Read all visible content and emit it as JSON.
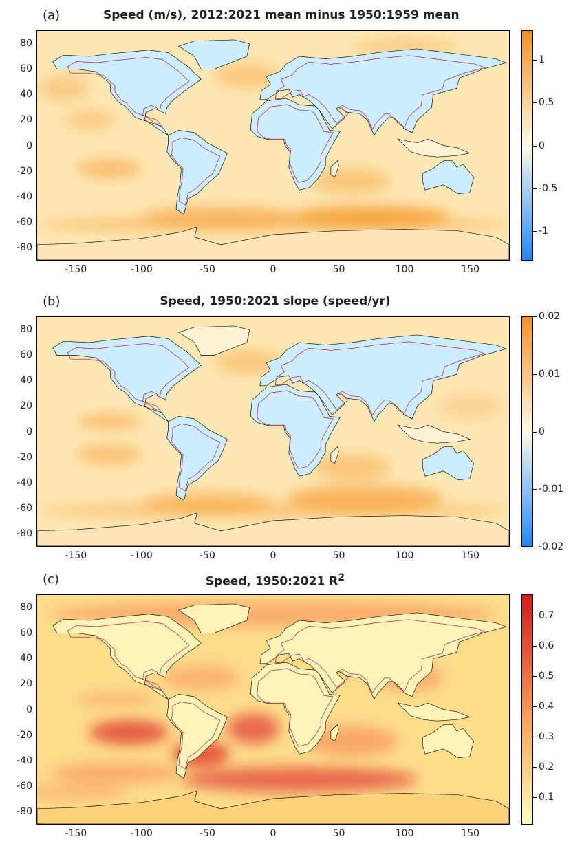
{
  "panels": [
    {
      "label": "(a)",
      "title": "Speed (m/s), 2012:2021 mean minus 1950:1959 mean",
      "colormap": "diverging",
      "colorbar_ticks": [
        "1",
        "0.5",
        "0",
        "-0.5",
        "-1"
      ],
      "colorbar_range": [
        -1.35,
        1.35
      ],
      "colorbar_values": [
        1,
        0.5,
        0,
        -0.5,
        -1
      ],
      "colors": {
        "high": "#f5901e",
        "mid": "#fffbe8",
        "low": "#1e88ff"
      }
    },
    {
      "label": "(b)",
      "title": "Speed, 1950:2021 slope (speed/yr)",
      "colormap": "diverging",
      "colorbar_ticks": [
        "0.02",
        "0.01",
        "0",
        "-0.01",
        "-0.02"
      ],
      "colorbar_range": [
        -0.02,
        0.02
      ],
      "colorbar_values": [
        0.02,
        0.01,
        0,
        -0.01,
        -0.02
      ],
      "colors": {
        "high": "#f5901e",
        "mid": "#fffbe8",
        "low": "#1e88ff"
      }
    },
    {
      "label": "(c)",
      "title": "Speed, 1950:2021 R",
      "title_sup": "2",
      "colormap": "sequential",
      "colorbar_ticks": [
        "0.7",
        "0.6",
        "0.5",
        "0.4",
        "0.3",
        "0.2",
        "0.1"
      ],
      "colorbar_range": [
        0.01,
        0.77
      ],
      "colorbar_values": [
        0.7,
        0.6,
        0.5,
        0.4,
        0.3,
        0.2,
        0.1
      ],
      "colors": {
        "high": "#d7191c",
        "mid": "#fdae61",
        "low": "#ffffbf"
      }
    }
  ],
  "axes": {
    "x_ticks": [
      "-150",
      "-100",
      "-50",
      "0",
      "50",
      "100",
      "150"
    ],
    "x_values": [
      -150,
      -100,
      -50,
      0,
      50,
      100,
      150
    ],
    "x_range": [
      -180,
      180
    ],
    "y_ticks": [
      "80",
      "60",
      "40",
      "20",
      "0",
      "-20",
      "-40",
      "-60",
      "-80"
    ],
    "y_values": [
      80,
      60,
      40,
      20,
      0,
      -20,
      -40,
      -60,
      -80
    ],
    "y_range": [
      -90,
      90
    ]
  }
}
